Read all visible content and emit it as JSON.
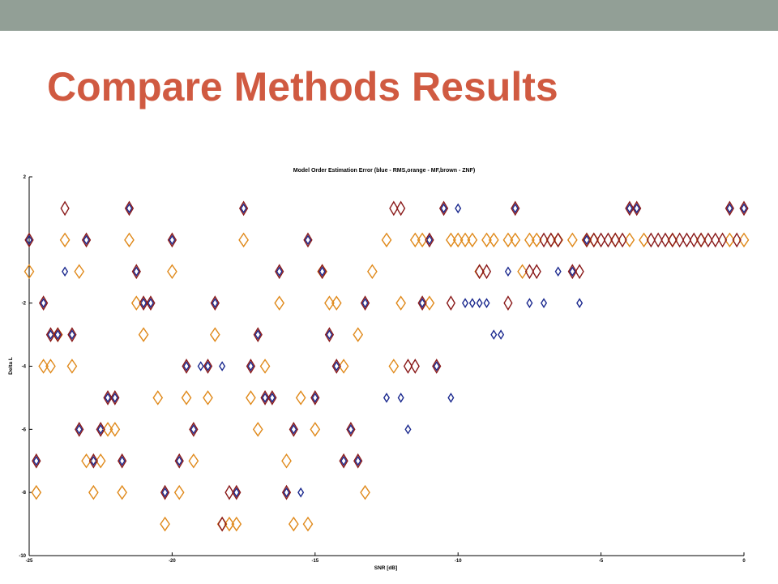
{
  "slide": {
    "title": "Compare Methods Results",
    "top_bar_color": "#929f96",
    "title_color": "#d05a41"
  },
  "chart_data": {
    "type": "scatter",
    "title": "Model Order Estimation Error (blue - RMS,orange - MF,brown - ZNF)",
    "xlabel": "SNR [dB]",
    "ylabel": "Delta L",
    "xlim": [
      -25,
      0
    ],
    "ylim": [
      -10,
      2
    ],
    "xticks": [
      -25,
      -20,
      -15,
      -10,
      -5,
      0
    ],
    "yticks": [
      2,
      -2,
      -4,
      -6,
      -8,
      -10
    ],
    "grid": false,
    "marker": "diamond",
    "series": [
      {
        "name": "RMS",
        "color": "#1c2a8f",
        "points": [
          [
            -25,
            0
          ],
          [
            -24.75,
            -7
          ],
          [
            -24.5,
            -2
          ],
          [
            -24.25,
            -3
          ],
          [
            -24,
            -3
          ],
          [
            -23.75,
            -1
          ],
          [
            -23.5,
            -3
          ],
          [
            -23.25,
            -6
          ],
          [
            -23,
            0
          ],
          [
            -22.75,
            -7
          ],
          [
            -22.5,
            -6
          ],
          [
            -22.25,
            -5
          ],
          [
            -22,
            -5
          ],
          [
            -21.75,
            -7
          ],
          [
            -21.5,
            1
          ],
          [
            -21.25,
            -1
          ],
          [
            -21,
            -2
          ],
          [
            -20.75,
            -2
          ],
          [
            -20.25,
            -8
          ],
          [
            -20,
            0
          ],
          [
            -19.75,
            -7
          ],
          [
            -19.5,
            -4
          ],
          [
            -19.25,
            -6
          ],
          [
            -19,
            -4
          ],
          [
            -18.75,
            -4
          ],
          [
            -18.5,
            -2
          ],
          [
            -18.25,
            -4
          ],
          [
            -17.75,
            -8
          ],
          [
            -17.5,
            1
          ],
          [
            -17.25,
            -4
          ],
          [
            -17,
            -3
          ],
          [
            -16.75,
            -5
          ],
          [
            -16.5,
            -5
          ],
          [
            -16.25,
            -1
          ],
          [
            -16,
            -8
          ],
          [
            -15.75,
            -6
          ],
          [
            -15.5,
            -8
          ],
          [
            -15.25,
            0
          ],
          [
            -15,
            -5
          ],
          [
            -14.75,
            -1
          ],
          [
            -14.5,
            -3
          ],
          [
            -14.25,
            -4
          ],
          [
            -14,
            -7
          ],
          [
            -13.75,
            -6
          ],
          [
            -13.5,
            -7
          ],
          [
            -13.25,
            -2
          ],
          [
            -12.5,
            -5
          ],
          [
            -12,
            -5
          ],
          [
            -11.75,
            -6
          ],
          [
            -11.25,
            -2
          ],
          [
            -11,
            0
          ],
          [
            -10.75,
            -4
          ],
          [
            -10.5,
            1
          ],
          [
            -10.25,
            -5
          ],
          [
            -10,
            1
          ],
          [
            -9.75,
            -2
          ],
          [
            -9.5,
            -2
          ],
          [
            -9.25,
            -2
          ],
          [
            -9,
            -2
          ],
          [
            -8.75,
            -3
          ],
          [
            -8.5,
            -3
          ],
          [
            -8.25,
            -1
          ],
          [
            -8,
            1
          ],
          [
            -7.5,
            -2
          ],
          [
            -7,
            -2
          ],
          [
            -6.5,
            -1
          ],
          [
            -6,
            -1
          ],
          [
            -5.75,
            -2
          ],
          [
            -5.5,
            0
          ],
          [
            -4,
            1
          ],
          [
            -3.75,
            1
          ],
          [
            -0.5,
            1
          ],
          [
            0,
            1
          ]
        ]
      },
      {
        "name": "MF",
        "color": "#e08a1c",
        "points": [
          [
            -25,
            -1
          ],
          [
            -24.75,
            -8
          ],
          [
            -24.5,
            -4
          ],
          [
            -24.25,
            -4
          ],
          [
            -24,
            -3
          ],
          [
            -23.75,
            0
          ],
          [
            -23.5,
            -4
          ],
          [
            -23.25,
            -1
          ],
          [
            -23,
            -7
          ],
          [
            -22.75,
            -8
          ],
          [
            -22.5,
            -7
          ],
          [
            -22.25,
            -6
          ],
          [
            -22,
            -6
          ],
          [
            -21.75,
            -8
          ],
          [
            -21.5,
            0
          ],
          [
            -21.25,
            -2
          ],
          [
            -21,
            -3
          ],
          [
            -20.5,
            -5
          ],
          [
            -20.25,
            -9
          ],
          [
            -20,
            -1
          ],
          [
            -19.75,
            -8
          ],
          [
            -19.5,
            -5
          ],
          [
            -19.25,
            -7
          ],
          [
            -18.75,
            -5
          ],
          [
            -18.5,
            -3
          ],
          [
            -18.25,
            -9
          ],
          [
            -18,
            -9
          ],
          [
            -17.75,
            -9
          ],
          [
            -17.5,
            0
          ],
          [
            -17.25,
            -5
          ],
          [
            -17,
            -6
          ],
          [
            -16.75,
            -4
          ],
          [
            -16.25,
            -2
          ],
          [
            -16,
            -7
          ],
          [
            -15.75,
            -9
          ],
          [
            -15.5,
            -5
          ],
          [
            -15.25,
            -9
          ],
          [
            -15,
            -6
          ],
          [
            -14.75,
            -1
          ],
          [
            -14.5,
            -2
          ],
          [
            -14.25,
            -2
          ],
          [
            -14,
            -4
          ],
          [
            -13.5,
            -3
          ],
          [
            -13.25,
            -8
          ],
          [
            -13,
            -1
          ],
          [
            -12.5,
            0
          ],
          [
            -12.25,
            -4
          ],
          [
            -12,
            -2
          ],
          [
            -11.5,
            0
          ],
          [
            -11.25,
            0
          ],
          [
            -11,
            -2
          ],
          [
            -10.25,
            0
          ],
          [
            -10,
            0
          ],
          [
            -9.75,
            0
          ],
          [
            -9.5,
            0
          ],
          [
            -9.25,
            -1
          ],
          [
            -9,
            0
          ],
          [
            -8.75,
            0
          ],
          [
            -8.25,
            0
          ],
          [
            -8,
            0
          ],
          [
            -7.75,
            -1
          ],
          [
            -7.5,
            0
          ],
          [
            -7.25,
            0
          ],
          [
            -6.75,
            0
          ],
          [
            -6.5,
            0
          ],
          [
            -6,
            0
          ],
          [
            -5.5,
            0
          ],
          [
            -5.25,
            0
          ],
          [
            -4.5,
            0
          ],
          [
            -4,
            0
          ],
          [
            -3.5,
            0
          ],
          [
            -2.5,
            0
          ],
          [
            -1.5,
            0
          ],
          [
            -0.5,
            0
          ],
          [
            0,
            0
          ]
        ]
      },
      {
        "name": "ZNF",
        "color": "#8a1a1a",
        "points": [
          [
            -25,
            0
          ],
          [
            -24.75,
            -7
          ],
          [
            -24.5,
            -2
          ],
          [
            -24.25,
            -3
          ],
          [
            -24,
            -3
          ],
          [
            -23.75,
            1
          ],
          [
            -23.5,
            -3
          ],
          [
            -23.25,
            -6
          ],
          [
            -23,
            0
          ],
          [
            -22.75,
            -7
          ],
          [
            -22.5,
            -6
          ],
          [
            -22.25,
            -5
          ],
          [
            -22,
            -5
          ],
          [
            -21.75,
            -7
          ],
          [
            -21.5,
            1
          ],
          [
            -21.25,
            -1
          ],
          [
            -21,
            -2
          ],
          [
            -20.75,
            -2
          ],
          [
            -20.25,
            -8
          ],
          [
            -20,
            0
          ],
          [
            -19.75,
            -7
          ],
          [
            -19.5,
            -4
          ],
          [
            -19.25,
            -6
          ],
          [
            -18.75,
            -4
          ],
          [
            -18.5,
            -2
          ],
          [
            -18.25,
            -9
          ],
          [
            -18,
            -8
          ],
          [
            -17.75,
            -8
          ],
          [
            -17.5,
            1
          ],
          [
            -17.25,
            -4
          ],
          [
            -17,
            -3
          ],
          [
            -16.75,
            -5
          ],
          [
            -16.5,
            -5
          ],
          [
            -16.25,
            -1
          ],
          [
            -16,
            -8
          ],
          [
            -15.75,
            -6
          ],
          [
            -15.25,
            0
          ],
          [
            -15,
            -5
          ],
          [
            -14.75,
            -1
          ],
          [
            -14.5,
            -3
          ],
          [
            -14.25,
            -4
          ],
          [
            -14,
            -7
          ],
          [
            -13.75,
            -6
          ],
          [
            -13.5,
            -7
          ],
          [
            -13.25,
            -2
          ],
          [
            -12.25,
            1
          ],
          [
            -12,
            1
          ],
          [
            -11.75,
            -4
          ],
          [
            -11.5,
            -4
          ],
          [
            -11.25,
            -2
          ],
          [
            -11,
            0
          ],
          [
            -10.75,
            -4
          ],
          [
            -10.5,
            1
          ],
          [
            -10.25,
            -2
          ],
          [
            -9.25,
            -1
          ],
          [
            -9,
            -1
          ],
          [
            -8.25,
            -2
          ],
          [
            -8,
            1
          ],
          [
            -7.5,
            -1
          ],
          [
            -7.25,
            -1
          ],
          [
            -7,
            0
          ],
          [
            -6.75,
            0
          ],
          [
            -6.5,
            0
          ],
          [
            -6,
            -1
          ],
          [
            -5.75,
            -1
          ],
          [
            -5.5,
            0
          ],
          [
            -5.25,
            0
          ],
          [
            -5,
            0
          ],
          [
            -4.75,
            0
          ],
          [
            -4.5,
            0
          ],
          [
            -4.25,
            0
          ],
          [
            -4,
            1
          ],
          [
            -3.75,
            1
          ],
          [
            -3.25,
            0
          ],
          [
            -3,
            0
          ],
          [
            -2.75,
            0
          ],
          [
            -2.5,
            0
          ],
          [
            -2.25,
            0
          ],
          [
            -2,
            0
          ],
          [
            -1.75,
            0
          ],
          [
            -1.5,
            0
          ],
          [
            -1.25,
            0
          ],
          [
            -1,
            0
          ],
          [
            -0.75,
            0
          ],
          [
            -0.5,
            1
          ],
          [
            -0.25,
            0
          ],
          [
            0,
            1
          ]
        ]
      }
    ]
  }
}
